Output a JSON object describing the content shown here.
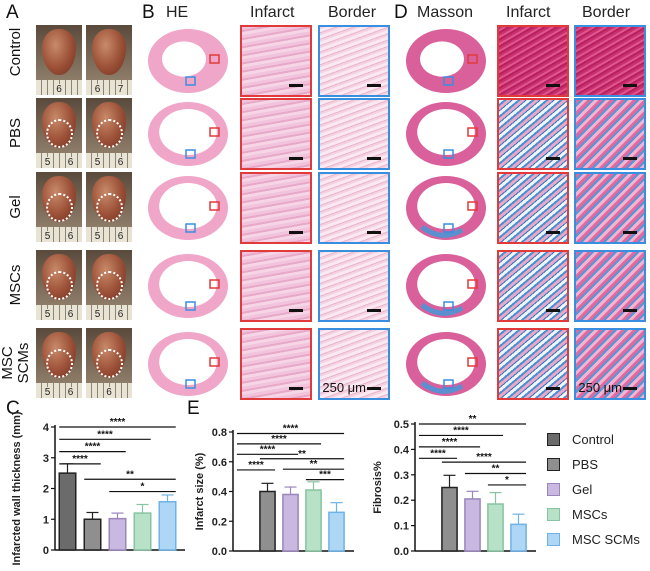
{
  "panels": {
    "A": "A",
    "B": "B",
    "C": "C",
    "D": "D",
    "E": "E"
  },
  "headers": {
    "he": "HE",
    "he_infarct": "Infarct",
    "he_border": "Border",
    "masson": "Masson",
    "ma_infarct": "Infarct",
    "ma_border": "Border"
  },
  "scale_label": "250 μm",
  "rows": [
    {
      "label": "Control",
      "ruler": [
        [
          "6"
        ],
        [
          "6",
          "7"
        ]
      ]
    },
    {
      "label": "PBS",
      "ruler": [
        [
          "5",
          "6"
        ],
        [
          "5",
          "6"
        ]
      ]
    },
    {
      "label": "Gel",
      "ruler": [
        [
          "5",
          "6"
        ],
        [
          "5",
          "6"
        ]
      ]
    },
    {
      "label": "MSCs",
      "ruler": [
        [
          "5",
          "6"
        ],
        [
          "5",
          "6"
        ]
      ]
    },
    {
      "label": "MSC SCMs",
      "ruler": [
        [
          "5",
          "6"
        ],
        [
          "6"
        ]
      ]
    }
  ],
  "legend": [
    {
      "label": "Control",
      "color": "#6b6b6b",
      "border": "#222"
    },
    {
      "label": "PBS",
      "color": "#8f8f8f",
      "border": "#222"
    },
    {
      "label": "Gel",
      "color": "#c9b8e0",
      "border": "#9a86bd"
    },
    {
      "label": "MSCs",
      "color": "#b7e2c8",
      "border": "#86c3a0"
    },
    {
      "label": "MSC SCMs",
      "color": "#aed6f5",
      "border": "#6fb2e6"
    }
  ],
  "chart_data": [
    {
      "type": "bar",
      "ylabel": "Infarcted wall thickness (mm)",
      "ylim": [
        0,
        4
      ],
      "yticks": [
        "0",
        "1",
        "2",
        "3",
        "4"
      ],
      "categories": [
        "Control",
        "PBS",
        "Gel",
        "MSCs",
        "MSC SCMs"
      ],
      "values": [
        2.5,
        1.0,
        1.02,
        1.2,
        1.57
      ],
      "errors": [
        0.3,
        0.22,
        0.18,
        0.28,
        0.22
      ],
      "comparisons": [
        {
          "a": 0,
          "b": 4,
          "y": 4.0,
          "sig": "****"
        },
        {
          "a": 0,
          "b": 3,
          "y": 3.6,
          "sig": "****"
        },
        {
          "a": 0,
          "b": 2,
          "y": 3.2,
          "sig": "****"
        },
        {
          "a": 0,
          "b": 1,
          "y": 2.8,
          "sig": "****"
        },
        {
          "a": 1,
          "b": 4,
          "y": 2.3,
          "sig": "**"
        },
        {
          "a": 2,
          "b": 4,
          "y": 1.9,
          "sig": "*"
        }
      ]
    },
    {
      "type": "bar",
      "ylabel": "Infarct size (%)",
      "ylim": [
        0,
        0.8
      ],
      "yticks": [
        "0.0",
        "0.2",
        "0.4",
        "0.6",
        "0.8"
      ],
      "categories": [
        "Control",
        "PBS",
        "Gel",
        "MSCs",
        "MSC SCMs"
      ],
      "values": [
        0,
        0.4,
        0.38,
        0.41,
        0.26
      ],
      "errors": [
        0,
        0.055,
        0.05,
        0.055,
        0.065
      ],
      "comparisons": [
        {
          "a": 0,
          "b": 4,
          "y": 0.79,
          "sig": "****"
        },
        {
          "a": 0,
          "b": 3,
          "y": 0.72,
          "sig": "****"
        },
        {
          "a": 0,
          "b": 2,
          "y": 0.65,
          "sig": "****"
        },
        {
          "a": 1,
          "b": 4,
          "y": 0.62,
          "sig": "**"
        },
        {
          "a": 0,
          "b": 1,
          "y": 0.545,
          "sig": "****"
        },
        {
          "a": 2,
          "b": 4,
          "y": 0.55,
          "sig": "**"
        },
        {
          "a": 3,
          "b": 4,
          "y": 0.48,
          "sig": "***"
        }
      ]
    },
    {
      "type": "bar",
      "ylabel": "Fibrosis%",
      "ylim": [
        0,
        0.5
      ],
      "yticks": [
        "0.0",
        "0.1",
        "0.2",
        "0.3",
        "0.4",
        "0.5"
      ],
      "categories": [
        "Control",
        "PBS",
        "Gel",
        "MSCs",
        "MSC SCMs"
      ],
      "values": [
        0,
        0.25,
        0.205,
        0.185,
        0.105
      ],
      "errors": [
        0,
        0.048,
        0.03,
        0.045,
        0.04
      ],
      "comparisons": [
        {
          "a": 0,
          "b": 4,
          "y": 0.5,
          "sig": "**"
        },
        {
          "a": 0,
          "b": 3,
          "y": 0.455,
          "sig": "****"
        },
        {
          "a": 0,
          "b": 2,
          "y": 0.41,
          "sig": "****"
        },
        {
          "a": 0,
          "b": 1,
          "y": 0.365,
          "sig": "****"
        },
        {
          "a": 1,
          "b": 4,
          "y": 0.35,
          "sig": "****"
        },
        {
          "a": 2,
          "b": 4,
          "y": 0.305,
          "sig": "**"
        },
        {
          "a": 3,
          "b": 4,
          "y": 0.26,
          "sig": "*"
        }
      ]
    }
  ]
}
